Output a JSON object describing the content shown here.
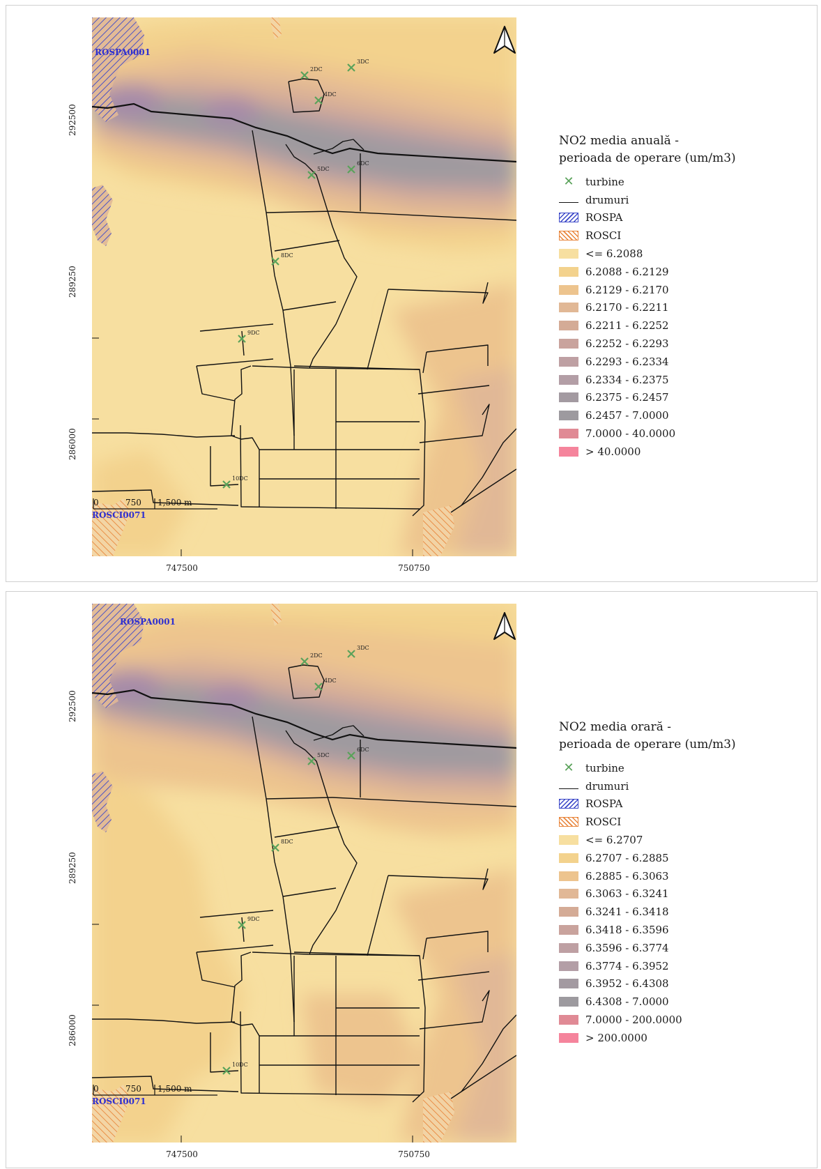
{
  "panels": [
    {
      "id": "top",
      "legend_title_line1": "NO2 media anuală -",
      "legend_title_line2": "perioada de operare (um/m3)",
      "legend_static": [
        {
          "label": "turbine",
          "kind": "turbine"
        },
        {
          "label": "drumuri",
          "kind": "road"
        },
        {
          "label": "ROSPA",
          "kind": "rospa"
        },
        {
          "label": "ROSCI",
          "kind": "rosci"
        }
      ],
      "classes": [
        {
          "label": "<= 6.2088",
          "color": "#f7dfa0"
        },
        {
          "label": "6.2088 - 6.2129",
          "color": "#f3d28d"
        },
        {
          "label": "6.2129 - 6.2170",
          "color": "#edc48e"
        },
        {
          "label": "6.2170 - 6.2211",
          "color": "#e1b896"
        },
        {
          "label": "6.2211 - 6.2252",
          "color": "#d4ab96"
        },
        {
          "label": "6.2252 - 6.2293",
          "color": "#c9a39d"
        },
        {
          "label": "6.2293 - 6.2334",
          "color": "#bea0a3"
        },
        {
          "label": "6.2334 - 6.2375",
          "color": "#b39ea6"
        },
        {
          "label": "6.2375 - 6.2457",
          "color": "#a39aa1"
        },
        {
          "label": "6.2457 - 7.0000",
          "color": "#9d9a9f"
        },
        {
          "label": "7.0000 - 40.0000",
          "color": "#e08a95"
        },
        {
          "label": "> 40.0000",
          "color": "#f5849c"
        }
      ],
      "rospa_label": "ROSPA0001",
      "rosci_label": "ROSCI0071"
    },
    {
      "id": "bottom",
      "legend_title_line1": "NO2 media orară -",
      "legend_title_line2": "perioada de operare (um/m3)",
      "legend_static": [
        {
          "label": "turbine",
          "kind": "turbine"
        },
        {
          "label": "drumuri",
          "kind": "road"
        },
        {
          "label": "ROSPA",
          "kind": "rospa"
        },
        {
          "label": "ROSCI",
          "kind": "rosci"
        }
      ],
      "classes": [
        {
          "label": "<= 6.2707",
          "color": "#f7dfa0"
        },
        {
          "label": "6.2707 - 6.2885",
          "color": "#f3d28d"
        },
        {
          "label": "6.2885 - 6.3063",
          "color": "#edc48e"
        },
        {
          "label": "6.3063 - 6.3241",
          "color": "#e1b896"
        },
        {
          "label": "6.3241 - 6.3418",
          "color": "#d4ab96"
        },
        {
          "label": "6.3418 - 6.3596",
          "color": "#c9a39d"
        },
        {
          "label": "6.3596 - 6.3774",
          "color": "#bea0a3"
        },
        {
          "label": "6.3774 - 6.3952",
          "color": "#b39ea6"
        },
        {
          "label": "6.3952 - 6.4308",
          "color": "#a39aa1"
        },
        {
          "label": "6.4308 - 7.0000",
          "color": "#9d9a9f"
        },
        {
          "label": "7.0000 - 200.0000",
          "color": "#e08a95"
        },
        {
          "label": "> 200.0000",
          "color": "#f5849c"
        }
      ],
      "rospa_label": "ROSPA0001",
      "rosci_label": "ROSCI0071"
    }
  ],
  "turbines": [
    "2DC",
    "3DC",
    "4DC",
    "5DC",
    "6DC",
    "8DC",
    "9DC",
    "10DC"
  ],
  "axes": {
    "y_ticks": [
      "292500",
      "289250",
      "286000"
    ],
    "x_ticks": [
      "747500",
      "750750"
    ]
  },
  "scalebar": {
    "zero": "0",
    "mid": "750",
    "end": "1,500 m"
  },
  "colors": {
    "road": "#111111",
    "turbine": "#5aa25a",
    "rospa_hatch": "#3a46c8",
    "rosci_hatch": "#e8843a",
    "area_label": "#2f2fd0"
  }
}
